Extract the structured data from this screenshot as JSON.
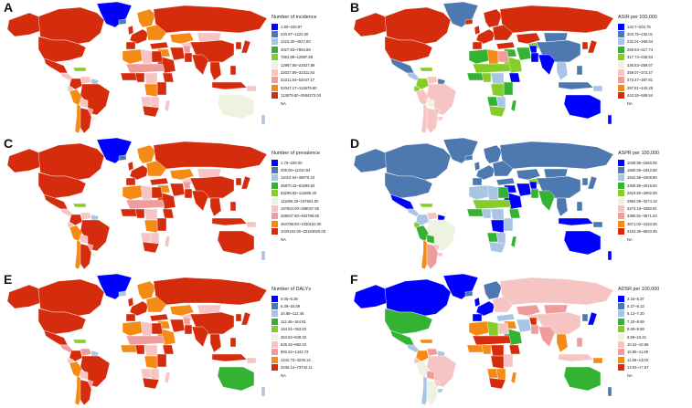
{
  "panels": [
    {
      "label": "A",
      "legend_title": "Number of incidence",
      "legend": [
        {
          "range": "1.90~220.97",
          "color": "#0000ff"
        },
        {
          "range": "220.97~1223.30",
          "color": "#4d79b0"
        },
        {
          "range": "1223.30~4027.83",
          "color": "#a9c5e3"
        },
        {
          "range": "4027.83~7864.89",
          "color": "#33b233"
        },
        {
          "range": "7864.89~12987.58",
          "color": "#86cc2a"
        },
        {
          "range": "12987.58~22027.89",
          "color": "#eef3e1"
        },
        {
          "range": "22027.89~32311.84",
          "color": "#f7c4c4"
        },
        {
          "range": "32311.84~52047.17",
          "color": "#ee9c9c"
        },
        {
          "range": "52047.17~113679.80",
          "color": "#f58a15"
        },
        {
          "range": "113679.80~2584373.00",
          "color": "#d42c0c"
        },
        {
          "range": "NA",
          "color": "#ffffff"
        }
      ],
      "regions": {
        "greenland": "#0000ff",
        "canada": "#d42c0c",
        "usa": "#d42c0c",
        "alaska": "#d42c0c",
        "mexico": "#d42c0c",
        "central_america": "#f7c4c4",
        "caribbean": "#86cc2a",
        "colombia": "#d42c0c",
        "venezuela": "#f7c4c4",
        "guianas": "#a9c5e3",
        "peru": "#f58a15",
        "ecuador": "#f7c4c4",
        "brazil": "#d42c0c",
        "bolivia": "#f7c4c4",
        "paraguay": "#ee9c9c",
        "argentina": "#d42c0c",
        "chile": "#f58a15",
        "uruguay": "#eef3e1",
        "scandinavia": "#f58a15",
        "western_europe": "#d42c0c",
        "eastern_europe": "#f58a15",
        "iberia": "#d42c0c",
        "uk": "#d42c0c",
        "iceland": "#4d79b0",
        "russia": "#d42c0c",
        "kazakhstan": "#f58a15",
        "central_asia": "#f7c4c4",
        "mongolia": "#f7c4c4",
        "china": "#d42c0c",
        "korea": "#d42c0c",
        "japan": "#d42c0c",
        "turkey": "#d42c0c",
        "middle_east": "#f58a15",
        "saudi": "#d42c0c",
        "iran": "#d42c0c",
        "afghanistan": "#ee9c9c",
        "pakistan": "#d42c0c",
        "india": "#d42c0c",
        "southeast_asia": "#d42c0c",
        "indonesia": "#d42c0c",
        "philippines": "#d42c0c",
        "png": "#f7c4c4",
        "north_africa_w": "#f58a15",
        "north_africa_c": "#f7c4c4",
        "egypt": "#d42c0c",
        "sahel": "#ee9c9c",
        "west_africa": "#d42c0c",
        "nigeria": "#d42c0c",
        "central_africa": "#f7c4c4",
        "drc": "#f58a15",
        "east_africa": "#d42c0c",
        "ethiopia": "#d42c0c",
        "angola": "#f7c4c4",
        "southern_africa": "#f7c4c4",
        "south_africa": "#d42c0c",
        "madagascar": "#f7c4c4",
        "australia": "#eef3e1",
        "new_zealand": "#a9c5e3"
      }
    },
    {
      "label": "B",
      "legend_title": "ASIR per 100,000",
      "legend": [
        {
          "range": "133.7~203.75",
          "color": "#0000ff"
        },
        {
          "range": "203.75~232.01",
          "color": "#4d79b0"
        },
        {
          "range": "232.01~269.64",
          "color": "#a9c5e3"
        },
        {
          "range": "269.64~317.74",
          "color": "#33b233"
        },
        {
          "range": "317.74~336.63",
          "color": "#86cc2a"
        },
        {
          "range": "336.63~359.07",
          "color": "#eef3e1"
        },
        {
          "range": "359.07~373.47",
          "color": "#f7c4c4"
        },
        {
          "range": "373.47~397.81",
          "color": "#ee9c9c"
        },
        {
          "range": "397.81~443.26",
          "color": "#f58a15"
        },
        {
          "range": "443.26~569.54",
          "color": "#d42c0c"
        },
        {
          "range": "NA",
          "color": "#ffffff"
        }
      ],
      "regions": {
        "greenland": "#4d79b0",
        "canada": "#d42c0c",
        "usa": "#d42c0c",
        "alaska": "#d42c0c",
        "mexico": "#4d79b0",
        "central_america": "#a9c5e3",
        "caribbean": "#86cc2a",
        "colombia": "#86cc2a",
        "venezuela": "#f7c4c4",
        "guianas": "#4d79b0",
        "peru": "#f7c4c4",
        "ecuador": "#86cc2a",
        "brazil": "#f7c4c4",
        "bolivia": "#eef3e1",
        "paraguay": "#f7c4c4",
        "argentina": "#f7c4c4",
        "chile": "#f7c4c4",
        "uruguay": "#f7c4c4",
        "scandinavia": "#d42c0c",
        "western_europe": "#d42c0c",
        "eastern_europe": "#d42c0c",
        "iberia": "#d42c0c",
        "uk": "#d42c0c",
        "iceland": "#d42c0c",
        "russia": "#d42c0c",
        "kazakhstan": "#d42c0c",
        "central_asia": "#86cc2a",
        "mongolia": "#4d79b0",
        "china": "#4d79b0",
        "korea": "#d42c0c",
        "japan": "#d42c0c",
        "turkey": "#d42c0c",
        "middle_east": "#33b233",
        "saudi": "#86cc2a",
        "iran": "#33b233",
        "afghanistan": "#0000ff",
        "pakistan": "#0000ff",
        "india": "#0000ff",
        "southeast_asia": "#a9c5e3",
        "indonesia": "#4d79b0",
        "philippines": "#4d79b0",
        "png": "#a9c5e3",
        "north_africa_w": "#33b233",
        "north_africa_c": "#f58a15",
        "egypt": "#ee9c9c",
        "sahel": "#86cc2a",
        "west_africa": "#33b233",
        "nigeria": "#86cc2a",
        "central_africa": "#a9c5e3",
        "drc": "#86cc2a",
        "east_africa": "#33b233",
        "ethiopia": "#0000ff",
        "angola": "#33b233",
        "southern_africa": "#a9c5e3",
        "south_africa": "#86cc2a",
        "madagascar": "#33b233",
        "australia": "#0000ff",
        "new_zealand": "#0000ff"
      }
    },
    {
      "label": "C",
      "legend_title": "Number of prevalence",
      "legend": [
        {
          "range": "1.70~209.00",
          "color": "#0000ff"
        },
        {
          "range": "209.00~11010.94",
          "color": "#4d79b0"
        },
        {
          "range": "11010.94~35870.43",
          "color": "#a9c5e3"
        },
        {
          "range": "35870.43~63299.83",
          "color": "#33b233"
        },
        {
          "range": "63299.83~111806.20",
          "color": "#86cc2a"
        },
        {
          "range": "111806.20~197604.00",
          "color": "#eef3e1"
        },
        {
          "range": "197604.00~268037.60",
          "color": "#f7c4c4"
        },
        {
          "range": "268037.60~464788.60",
          "color": "#ee9c9c"
        },
        {
          "range": "464788.60~1030162.00",
          "color": "#f58a15"
        },
        {
          "range": "1030162.00~23183620.00",
          "color": "#d42c0c"
        },
        {
          "range": "NA",
          "color": "#ffffff"
        }
      ],
      "regions": {
        "greenland": "#0000ff",
        "canada": "#d42c0c",
        "usa": "#d42c0c",
        "alaska": "#d42c0c",
        "mexico": "#d42c0c",
        "central_america": "#f7c4c4",
        "caribbean": "#86cc2a",
        "colombia": "#d42c0c",
        "venezuela": "#f7c4c4",
        "guianas": "#a9c5e3",
        "peru": "#f58a15",
        "ecuador": "#f7c4c4",
        "brazil": "#d42c0c",
        "bolivia": "#f7c4c4",
        "paraguay": "#ee9c9c",
        "argentina": "#d42c0c",
        "chile": "#f58a15",
        "uruguay": "#eef3e1",
        "scandinavia": "#f58a15",
        "western_europe": "#d42c0c",
        "eastern_europe": "#f58a15",
        "iberia": "#d42c0c",
        "uk": "#d42c0c",
        "iceland": "#4d79b0",
        "russia": "#d42c0c",
        "kazakhstan": "#f58a15",
        "central_asia": "#f7c4c4",
        "mongolia": "#f7c4c4",
        "china": "#d42c0c",
        "korea": "#d42c0c",
        "japan": "#d42c0c",
        "turkey": "#d42c0c",
        "middle_east": "#f58a15",
        "saudi": "#d42c0c",
        "iran": "#d42c0c",
        "afghanistan": "#ee9c9c",
        "pakistan": "#d42c0c",
        "india": "#d42c0c",
        "southeast_asia": "#d42c0c",
        "indonesia": "#d42c0c",
        "philippines": "#d42c0c",
        "png": "#f7c4c4",
        "north_africa_w": "#f58a15",
        "north_africa_c": "#f7c4c4",
        "egypt": "#d42c0c",
        "sahel": "#ee9c9c",
        "west_africa": "#d42c0c",
        "nigeria": "#d42c0c",
        "central_africa": "#f7c4c4",
        "drc": "#f58a15",
        "east_africa": "#d42c0c",
        "ethiopia": "#d42c0c",
        "angola": "#f7c4c4",
        "southern_africa": "#f7c4c4",
        "south_africa": "#d42c0c",
        "madagascar": "#f7c4c4",
        "australia": "#d42c0c",
        "new_zealand": "#a9c5e3"
      }
    },
    {
      "label": "D",
      "legend_title": "ASPR per 100,000",
      "legend": [
        {
          "range": "1039.95~1660.05",
          "color": "#0000ff"
        },
        {
          "range": "1660.05~1942.58",
          "color": "#4d79b0"
        },
        {
          "range": "1942.58~2308.90",
          "color": "#a9c5e3"
        },
        {
          "range": "2308.90~2619.50",
          "color": "#33b233"
        },
        {
          "range": "2619.50~2992.09",
          "color": "#86cc2a"
        },
        {
          "range": "2992.09~3274.18",
          "color": "#eef3e1"
        },
        {
          "range": "3274.18~3380.91",
          "color": "#f7c4c4"
        },
        {
          "range": "3380.91~3671.03",
          "color": "#ee9c9c"
        },
        {
          "range": "3671.03~4153.36",
          "color": "#f58a15"
        },
        {
          "range": "4153.36~5633.35",
          "color": "#d42c0c"
        },
        {
          "range": "NA",
          "color": "#ffffff"
        }
      ],
      "regions": {
        "greenland": "#4d79b0",
        "canada": "#4d79b0",
        "usa": "#4d79b0",
        "alaska": "#4d79b0",
        "mexico": "#0000ff",
        "central_america": "#a9c5e3",
        "caribbean": "#86cc2a",
        "colombia": "#a9c5e3",
        "venezuela": "#f7c4c4",
        "guianas": "#0000ff",
        "peru": "#33b233",
        "ecuador": "#86cc2a",
        "brazil": "#eef3e1",
        "bolivia": "#33b233",
        "paraguay": "#f7c4c4",
        "argentina": "#ee9c9c",
        "chile": "#f58a15",
        "uruguay": "#f7c4c4",
        "scandinavia": "#4d79b0",
        "western_europe": "#4d79b0",
        "eastern_europe": "#4d79b0",
        "iberia": "#4d79b0",
        "uk": "#4d79b0",
        "iceland": "#4d79b0",
        "russia": "#4d79b0",
        "kazakhstan": "#4d79b0",
        "central_asia": "#86cc2a",
        "mongolia": "#4d79b0",
        "china": "#4d79b0",
        "korea": "#4d79b0",
        "japan": "#4d79b0",
        "turkey": "#4d79b0",
        "middle_east": "#0000ff",
        "saudi": "#0000ff",
        "iran": "#0000ff",
        "afghanistan": "#0000ff",
        "pakistan": "#33b233",
        "india": "#33b233",
        "southeast_asia": "#4d79b0",
        "indonesia": "#0000ff",
        "philippines": "#4d79b0",
        "png": "#4d79b0",
        "north_africa_w": "#a9c5e3",
        "north_africa_c": "#a9c5e3",
        "egypt": "#33b233",
        "sahel": "#86cc2a",
        "west_africa": "#33b233",
        "nigeria": "#a9c5e3",
        "central_africa": "#a9c5e3",
        "drc": "#0000ff",
        "east_africa": "#a9c5e3",
        "ethiopia": "#33b233",
        "angola": "#33b233",
        "southern_africa": "#a9c5e3",
        "south_africa": "#a9c5e3",
        "madagascar": "#33b233",
        "australia": "#0000ff",
        "new_zealand": "#0000ff"
      }
    },
    {
      "label": "E",
      "legend_title": "Number of DALYs",
      "legend": [
        {
          "range": "0.05~6.39",
          "color": "#0000ff"
        },
        {
          "range": "6.39~34.89",
          "color": "#4d79b0"
        },
        {
          "range": "34.89~112.46",
          "color": "#a9c5e3"
        },
        {
          "range": "112.46~164.91",
          "color": "#33b233"
        },
        {
          "range": "164.91~353.82",
          "color": "#86cc2a"
        },
        {
          "range": "353.82~628.32",
          "color": "#eef3e1"
        },
        {
          "range": "628.32~892.02",
          "color": "#f7c4c4"
        },
        {
          "range": "892.02~1442.73",
          "color": "#ee9c9c"
        },
        {
          "range": "1442.73~3235.14",
          "color": "#f58a15"
        },
        {
          "range": "3235.14~73742.11",
          "color": "#d42c0c"
        },
        {
          "range": "NA",
          "color": "#ffffff"
        }
      ],
      "regions": {
        "greenland": "#0000ff",
        "canada": "#d42c0c",
        "usa": "#d42c0c",
        "alaska": "#d42c0c",
        "mexico": "#d42c0c",
        "central_america": "#ee9c9c",
        "caribbean": "#86cc2a",
        "colombia": "#d42c0c",
        "venezuela": "#ee9c9c",
        "guianas": "#a9c5e3",
        "peru": "#f58a15",
        "ecuador": "#f7c4c4",
        "brazil": "#d42c0c",
        "bolivia": "#f7c4c4",
        "paraguay": "#ee9c9c",
        "argentina": "#d42c0c",
        "chile": "#f58a15",
        "uruguay": "#eef3e1",
        "scandinavia": "#f58a15",
        "western_europe": "#d42c0c",
        "eastern_europe": "#f58a15",
        "iberia": "#d42c0c",
        "uk": "#d42c0c",
        "iceland": "#a9c5e3",
        "russia": "#d42c0c",
        "kazakhstan": "#f58a15",
        "central_asia": "#f7c4c4",
        "mongolia": "#f7c4c4",
        "china": "#d42c0c",
        "korea": "#d42c0c",
        "japan": "#d42c0c",
        "turkey": "#d42c0c",
        "middle_east": "#f58a15",
        "saudi": "#f58a15",
        "iran": "#d42c0c",
        "afghanistan": "#ee9c9c",
        "pakistan": "#d42c0c",
        "india": "#d42c0c",
        "southeast_asia": "#d42c0c",
        "indonesia": "#d42c0c",
        "philippines": "#d42c0c",
        "png": "#f7c4c4",
        "north_africa_w": "#f58a15",
        "north_africa_c": "#f7c4c4",
        "egypt": "#d42c0c",
        "sahel": "#ee9c9c",
        "west_africa": "#f58a15",
        "nigeria": "#d42c0c",
        "central_africa": "#f7c4c4",
        "drc": "#f58a15",
        "east_africa": "#d42c0c",
        "ethiopia": "#d42c0c",
        "angola": "#f7c4c4",
        "southern_africa": "#f7c4c4",
        "south_africa": "#d42c0c",
        "madagascar": "#f7c4c4",
        "australia": "#33b233",
        "new_zealand": "#a9c5e3"
      }
    },
    {
      "label": "F",
      "legend_title": "ADSR per 100,000",
      "legend": [
        {
          "range": "3.34~5.37",
          "color": "#0000ff"
        },
        {
          "range": "5.37~6.13",
          "color": "#4d79b0"
        },
        {
          "range": "6.13~7.20",
          "color": "#a9c5e3"
        },
        {
          "range": "7.20~8.69",
          "color": "#33b233"
        },
        {
          "range": "8.69~9.59",
          "color": "#86cc2a"
        },
        {
          "range": "9.59~10.31",
          "color": "#eef3e1"
        },
        {
          "range": "10.31~10.86",
          "color": "#f7c4c4"
        },
        {
          "range": "10.86~11.69",
          "color": "#ee9c9c"
        },
        {
          "range": "11.69~13.03",
          "color": "#f58a15"
        },
        {
          "range": "13.03~17.57",
          "color": "#d42c0c"
        },
        {
          "range": "NA",
          "color": "#ffffff"
        }
      ],
      "regions": {
        "greenland": "#0000ff",
        "canada": "#0000ff",
        "usa": "#33b233",
        "alaska": "#0000ff",
        "mexico": "#33b233",
        "central_america": "#a9c5e3",
        "caribbean": "#f58a15",
        "colombia": "#f58a15",
        "venezuela": "#ee9c9c",
        "guianas": "#a9c5e3",
        "peru": "#eef3e1",
        "ecuador": "#f7c4c4",
        "brazil": "#f7c4c4",
        "bolivia": "#ee9c9c",
        "paraguay": "#f7c4c4",
        "argentina": "#eef3e1",
        "chile": "#a9c5e3",
        "uruguay": "#a9c5e3",
        "scandinavia": "#4d79b0",
        "western_europe": "#0000ff",
        "eastern_europe": "#f7c4c4",
        "iberia": "#0000ff",
        "uk": "#0000ff",
        "iceland": "#4d79b0",
        "russia": "#f7c4c4",
        "kazakhstan": "#ee9c9c",
        "central_asia": "#f7c4c4",
        "mongolia": "#ee9c9c",
        "china": "#f7c4c4",
        "korea": "#4d79b0",
        "japan": "#0000ff",
        "turkey": "#a9c5e3",
        "middle_east": "#f58a15",
        "saudi": "#33b233",
        "iran": "#a9c5e3",
        "afghanistan": "#d42c0c",
        "pakistan": "#ee9c9c",
        "india": "#ee9c9c",
        "southeast_asia": "#f58a15",
        "indonesia": "#f7c4c4",
        "philippines": "#ee9c9c",
        "png": "#f58a15",
        "north_africa_w": "#f58a15",
        "north_africa_c": "#86cc2a",
        "egypt": "#f7c4c4",
        "sahel": "#d42c0c",
        "west_africa": "#f58a15",
        "nigeria": "#f58a15",
        "central_africa": "#d42c0c",
        "drc": "#d42c0c",
        "east_africa": "#f7c4c4",
        "ethiopia": "#d42c0c",
        "angola": "#f58a15",
        "southern_africa": "#f58a15",
        "south_africa": "#d42c0c",
        "madagascar": "#f58a15",
        "australia": "#33b233",
        "new_zealand": "#4d79b0"
      }
    }
  ]
}
